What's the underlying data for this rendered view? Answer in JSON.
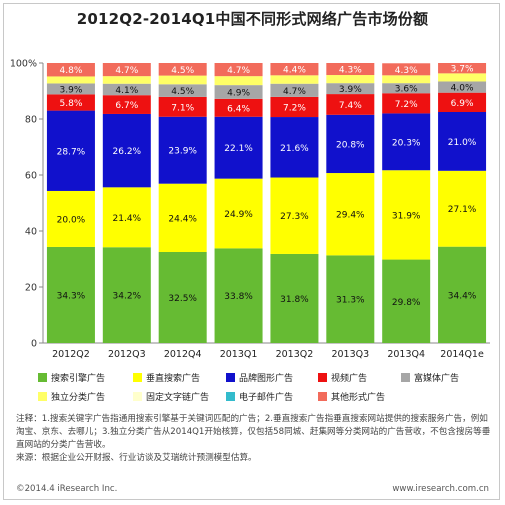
{
  "title": "2012Q2-2014Q1中国不同形式网络广告市场份额",
  "chart_data": {
    "type": "bar",
    "stacked": true,
    "categories": [
      "2012Q2",
      "2012Q3",
      "2012Q4",
      "2013Q1",
      "2013Q2",
      "2013Q3",
      "2013Q4",
      "2014Q1e"
    ],
    "series": [
      {
        "name": "搜索引擎广告",
        "color": "#66bb33",
        "values": [
          34.3,
          34.2,
          32.5,
          33.8,
          31.8,
          31.3,
          29.8,
          34.4
        ],
        "labels": [
          "34.3%",
          "34.2%",
          "32.5%",
          "33.8%",
          "31.8%",
          "31.3%",
          "29.8%",
          "34.4%"
        ],
        "label_color": "#111111"
      },
      {
        "name": "垂直搜索广告",
        "color": "#ffff00",
        "values": [
          20.0,
          21.4,
          24.4,
          24.9,
          27.3,
          29.4,
          31.9,
          27.1
        ],
        "labels": [
          "20.0%",
          "21.4%",
          "24.4%",
          "24.9%",
          "27.3%",
          "29.4%",
          "31.9%",
          "27.1%"
        ],
        "label_color": "#111111"
      },
      {
        "name": "品牌图形广告",
        "color": "#1111cc",
        "values": [
          28.7,
          26.2,
          23.9,
          22.1,
          21.6,
          20.8,
          20.3,
          21.0
        ],
        "labels": [
          "28.7%",
          "26.2%",
          "23.9%",
          "22.1%",
          "21.6%",
          "20.8%",
          "20.3%",
          "21.0%"
        ],
        "label_color": "#ffffff"
      },
      {
        "name": "视频广告",
        "color": "#ee1111",
        "values": [
          5.8,
          6.7,
          7.1,
          6.4,
          7.2,
          7.4,
          7.2,
          6.9
        ],
        "labels": [
          "5.8%",
          "6.7%",
          "7.1%",
          "6.4%",
          "7.2%",
          "7.4%",
          "7.2%",
          "6.9%"
        ],
        "label_color": "#ffffff"
      },
      {
        "name": "富媒体广告",
        "color": "#a6a6a6",
        "values": [
          3.9,
          4.1,
          4.5,
          4.9,
          4.7,
          3.9,
          3.6,
          4.0
        ],
        "labels": [
          "3.9%",
          "4.1%",
          "4.5%",
          "4.9%",
          "4.7%",
          "3.9%",
          "3.6%",
          "4.0%"
        ],
        "label_color": "#111111"
      },
      {
        "name": "独立分类广告",
        "color": "#ffff66",
        "values": [
          2.5,
          2.7,
          3.1,
          3.2,
          3.0,
          2.9,
          2.8,
          2.9
        ],
        "labels": [
          "",
          "",
          "",
          "",
          "",
          "",
          "",
          ""
        ],
        "label_color": "#111111"
      },
      {
        "name": "固定文字链广告",
        "color": "#ffffcc",
        "values": [
          0,
          0,
          0,
          0,
          0,
          0,
          0,
          0
        ],
        "labels": [
          "",
          "",
          "",
          "",
          "",
          "",
          "",
          ""
        ],
        "label_color": "#111111"
      },
      {
        "name": "电子邮件广告",
        "color": "#33bbcc",
        "values": [
          0,
          0,
          0,
          0,
          0,
          0,
          0,
          0
        ],
        "labels": [
          "",
          "",
          "",
          "",
          "",
          "",
          "",
          ""
        ],
        "label_color": "#111111"
      },
      {
        "name": "其他形式广告",
        "color": "#f26b5b",
        "values": [
          4.8,
          4.7,
          4.5,
          4.7,
          4.4,
          4.3,
          4.3,
          3.7
        ],
        "labels": [
          "4.8%",
          "4.7%",
          "4.5%",
          "4.7%",
          "4.4%",
          "4.3%",
          "4.3%",
          "3.7%"
        ],
        "label_color": "#ffffff"
      }
    ],
    "y_ticks": [
      "0",
      "20",
      "40",
      "60",
      "80",
      "100%"
    ],
    "ylim": [
      0,
      100
    ],
    "legend_position": "bottom"
  },
  "notes": {
    "line1": "注释：1.搜索关键字广告指通用搜索引擎基于关键词匹配的广告；2.垂直搜索广告指垂直搜索网站提供的搜索服务广告，例如淘宝、京东、去哪儿；3.独立分类广告从2014Q1开始核算，仅包括58同城、赶集网等分类网站的广告营收，不包含搜房等垂直网站的分类广告营收。",
    "line2": "来源：根据企业公开财报、行业访谈及艾瑞统计预测模型估算。"
  },
  "footer": {
    "left": "©2014.4 iResearch Inc.",
    "right": "www.iresearch.com.cn"
  }
}
